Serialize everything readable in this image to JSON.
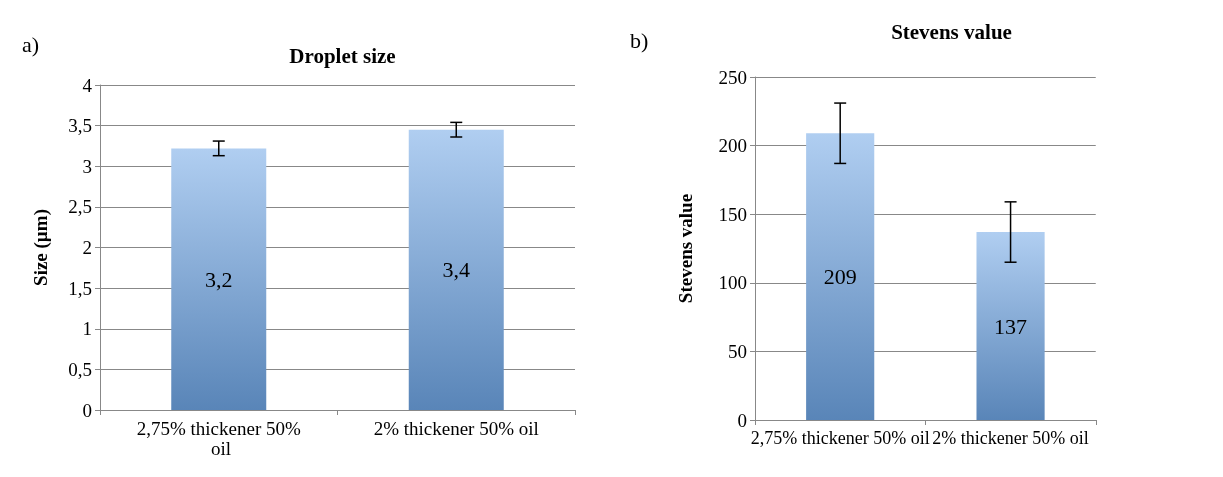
{
  "chart_data": [
    {
      "type": "bar",
      "title": "Droplet size",
      "ylabel": "Size (µm)",
      "annotations": [
        "a)"
      ],
      "categories": [
        "2,75% thickener 50% oil",
        "2% thickener 50% oil"
      ],
      "values": [
        3.22,
        3.45
      ],
      "value_labels": [
        "3,2",
        "3,4"
      ],
      "errors": [
        0.09,
        0.09
      ],
      "color": "#6fa6e6",
      "ylim": [
        0,
        4
      ],
      "yticks": [
        0,
        {
          "value": 0.5,
          "label": "0,5"
        },
        1,
        {
          "value": 1.5,
          "label": "1,5"
        },
        2,
        {
          "value": 2.5,
          "label": "2,5"
        },
        3,
        {
          "value": 3.5,
          "label": "3,5"
        },
        4
      ],
      "grid": "y"
    },
    {
      "type": "bar",
      "title": "Stevens value",
      "ylabel": "Stevens value",
      "annotations": [
        "b)"
      ],
      "categories": [
        "2,75% thickener 50% oil",
        "2% thickener 50% oil"
      ],
      "values": [
        209,
        137
      ],
      "data_labels": true,
      "errors": [
        22,
        22
      ],
      "color": "#6fa6e6",
      "ylim": [
        0,
        250
      ],
      "yticks": [
        0,
        50,
        100,
        150,
        200,
        250
      ],
      "grid": "y"
    }
  ]
}
